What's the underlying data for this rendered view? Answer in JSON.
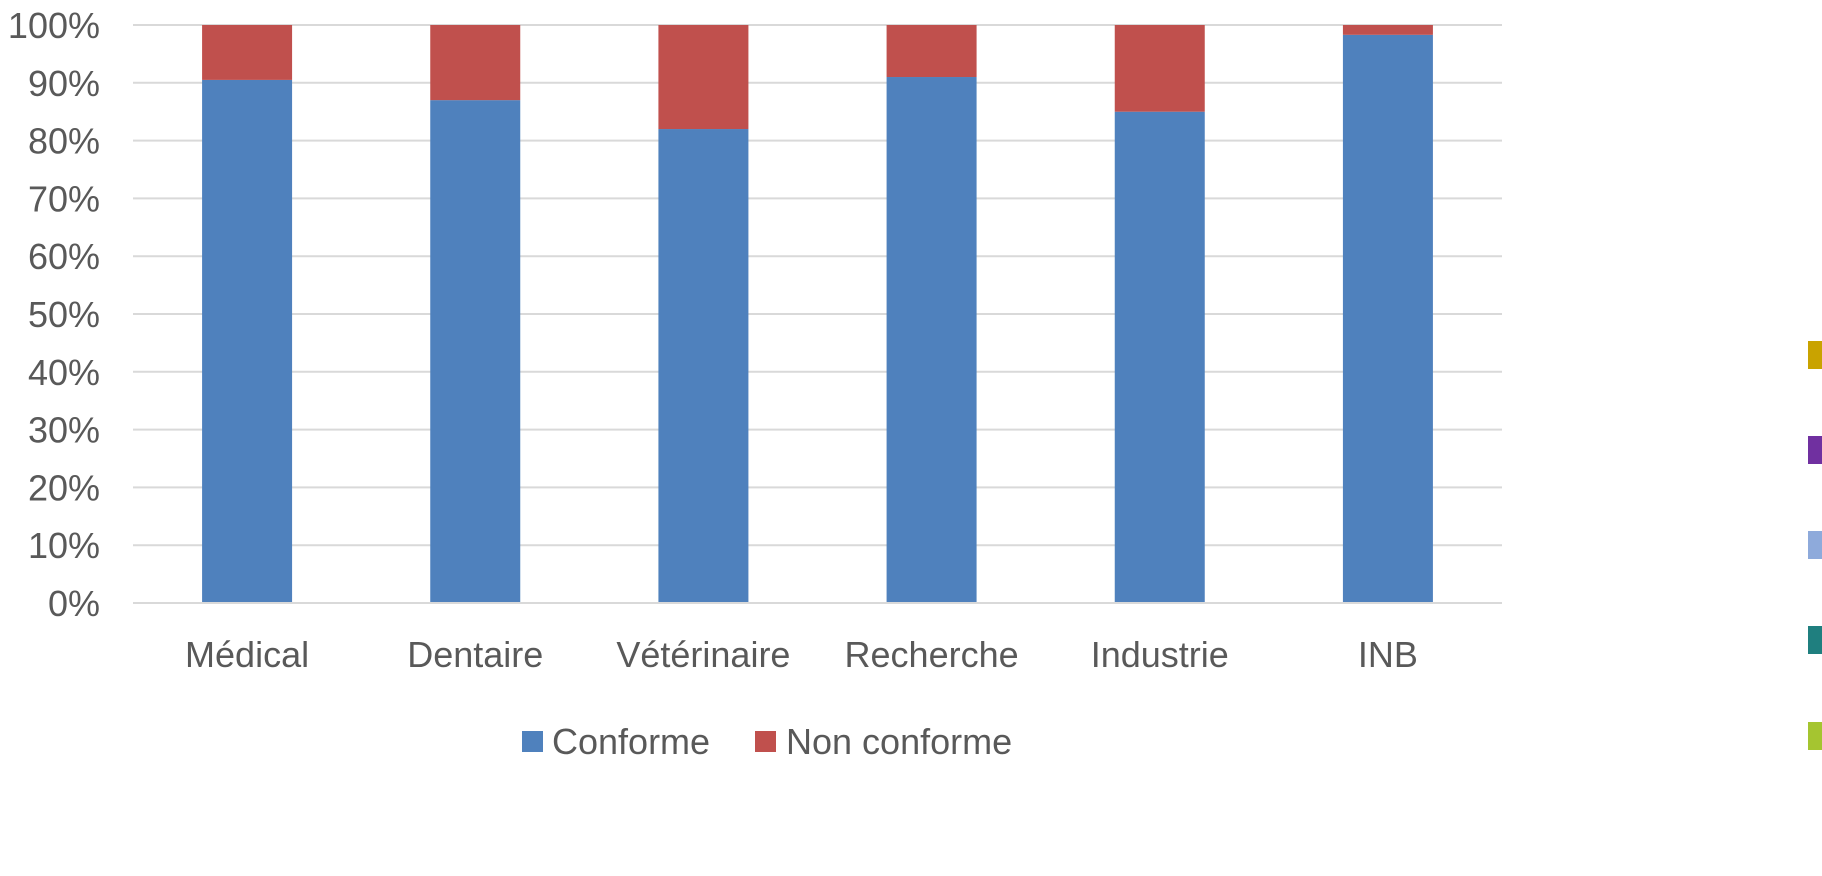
{
  "chart_data": {
    "type": "bar",
    "stacked": true,
    "categories": [
      "Médical",
      "Dentaire",
      "Vétérinaire",
      "Recherche",
      "Industrie",
      "INB"
    ],
    "series": [
      {
        "name": "Conforme",
        "color": "#4f81bd",
        "values": [
          90.5,
          87,
          82,
          91,
          85,
          98.3
        ]
      },
      {
        "name": "Non conforme",
        "color": "#c0504d",
        "values": [
          9.5,
          13,
          18,
          9,
          15,
          1.7
        ]
      }
    ],
    "ylim": [
      0,
      100
    ],
    "yticks": [
      "0%",
      "10%",
      "20%",
      "30%",
      "40%",
      "50%",
      "60%",
      "70%",
      "80%",
      "90%",
      "100%"
    ],
    "grid": true,
    "legend_position": "bottom",
    "title": "",
    "xlabel": "",
    "ylabel": ""
  },
  "side_markers": [
    {
      "color": "#c9a300",
      "icon": "square-marker"
    },
    {
      "color": "#7030a0",
      "icon": "square-marker"
    },
    {
      "color": "#8eaadb",
      "icon": "square-marker"
    },
    {
      "color": "#1f7f7f",
      "icon": "square-marker"
    },
    {
      "color": "#a5c530",
      "icon": "square-marker"
    }
  ]
}
